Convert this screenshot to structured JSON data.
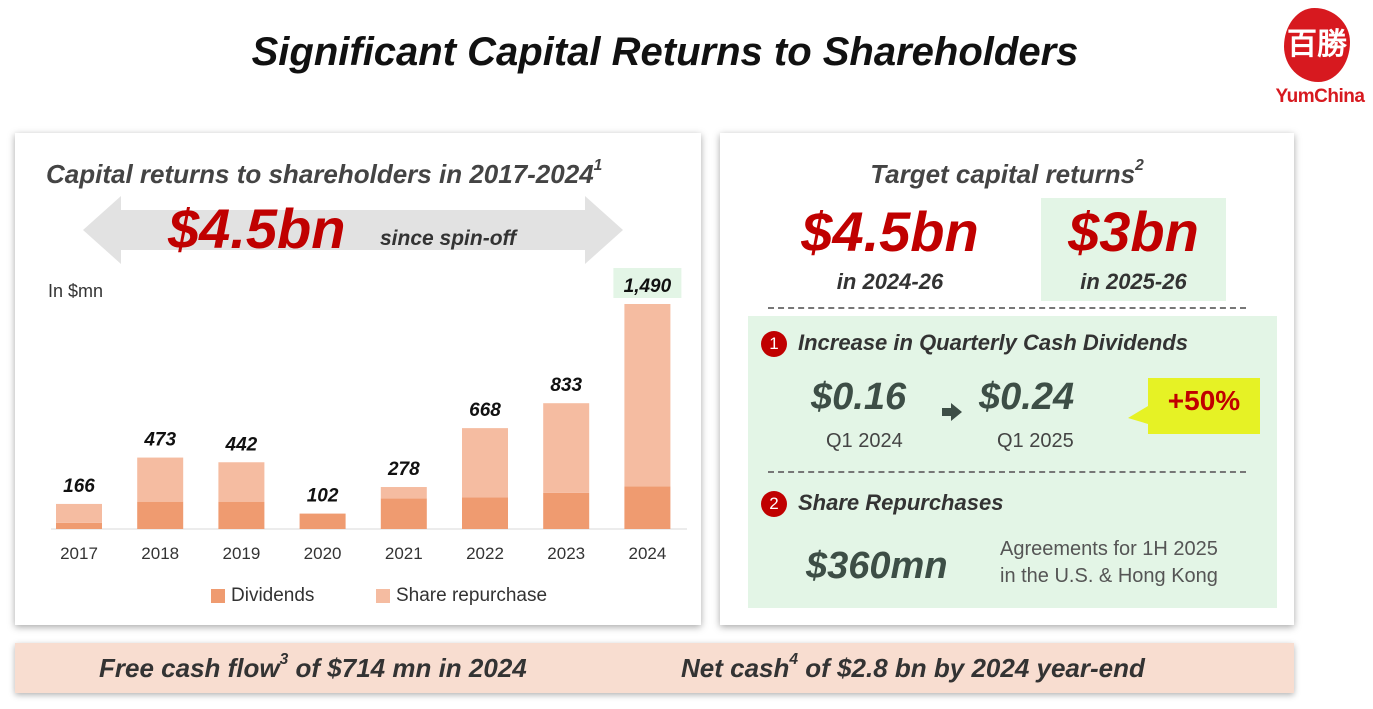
{
  "title": "Significant Capital Returns to Shareholders",
  "logo": {
    "glyph": "百勝",
    "brand": "YumChina"
  },
  "left_panel": {
    "title": "Capital returns to shareholders in 2017-2024",
    "title_footnote": "1",
    "total": "$4.5bn",
    "since": "since spin-off",
    "unit": "In $mn"
  },
  "colors": {
    "dividends": "#ef9b70",
    "share_repurchase": "#f5bca1",
    "accent_red": "#c00000",
    "highlight_green": "#e3f5e6",
    "callout_yellow": "#e6f225"
  },
  "chart_data": {
    "type": "bar",
    "stacked": true,
    "categories": [
      "2017",
      "2018",
      "2019",
      "2020",
      "2021",
      "2022",
      "2023",
      "2024"
    ],
    "totals": [
      "166",
      "473",
      "442",
      "102",
      "278",
      "668",
      "833",
      "1,490"
    ],
    "series": [
      {
        "name": "Dividends",
        "values": [
          41,
          181,
          181,
          102,
          203,
          209,
          239,
          283
        ]
      },
      {
        "name": "Share repurchase",
        "values": [
          125,
          292,
          261,
          0,
          75,
          459,
          594,
          1207
        ]
      }
    ],
    "ylabel": "In $mn",
    "ylim": [
      0,
      1650
    ],
    "grid": false,
    "legend_position": "bottom",
    "highlight_last_label": true
  },
  "right_panel": {
    "title": "Target capital returns",
    "title_footnote": "2",
    "target1": {
      "amount": "$4.5bn",
      "period": "in 2024-26"
    },
    "target2": {
      "amount": "$3bn",
      "period": "in 2025-26"
    },
    "section1": {
      "number": "1",
      "heading": "Increase in Quarterly Cash Dividends",
      "from_value": "$0.16",
      "from_label": "Q1 2024",
      "to_value": "$0.24",
      "to_label": "Q1 2025",
      "change": "+50%"
    },
    "section2": {
      "number": "2",
      "heading": "Share Repurchases",
      "value": "$360mn",
      "note_line1": "Agreements for 1H 2025",
      "note_line2": "in the U.S. & Hong Kong"
    }
  },
  "footer": {
    "fcf_prefix": "Free cash flow",
    "fcf_footnote": "3",
    "fcf_suffix": " of $714 mn in 2024",
    "netcash_prefix": "Net cash",
    "netcash_footnote": "4",
    "netcash_suffix": " of $2.8 bn by 2024 year-end"
  }
}
